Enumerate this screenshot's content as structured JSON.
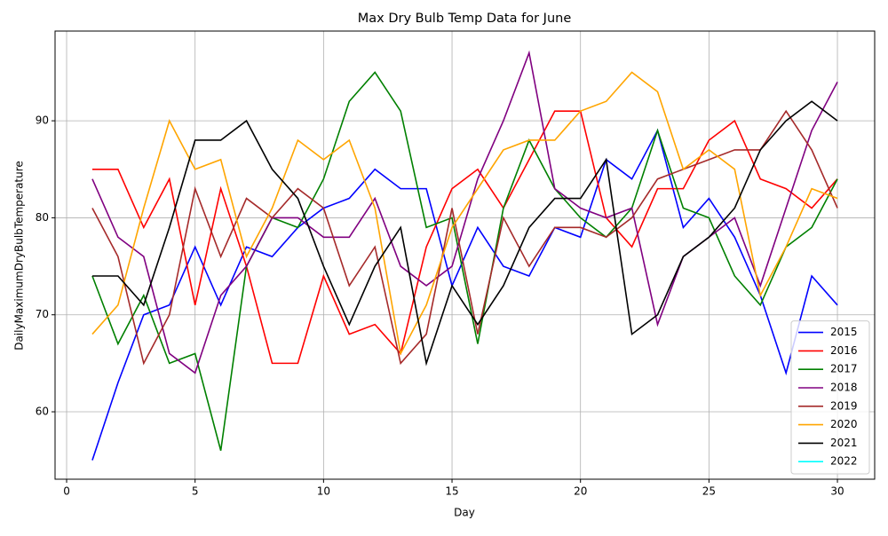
{
  "chart_data": {
    "type": "line",
    "title": "Max Dry Bulb Temp Data for June",
    "x_label": "Day",
    "y_label": "DailyMaximumDryBulbTemperature",
    "x": [
      1,
      2,
      3,
      4,
      5,
      6,
      7,
      8,
      9,
      10,
      11,
      12,
      13,
      14,
      15,
      16,
      17,
      18,
      19,
      20,
      21,
      22,
      23,
      24,
      25,
      26,
      27,
      28,
      29,
      30
    ],
    "series": [
      {
        "name": "2015",
        "color": "#0000ff",
        "values": [
          55,
          63,
          70,
          71,
          77,
          71,
          77,
          76,
          79,
          81,
          82,
          85,
          83,
          83,
          73,
          79,
          75,
          74,
          79,
          78,
          86,
          84,
          89,
          79,
          82,
          78,
          72,
          64,
          74,
          71
        ]
      },
      {
        "name": "2016",
        "color": "#ff0000",
        "values": [
          85,
          85,
          79,
          84,
          71,
          83,
          75,
          65,
          65,
          74,
          68,
          69,
          66,
          77,
          83,
          85,
          81,
          86,
          91,
          91,
          80,
          77,
          83,
          83,
          88,
          90,
          84,
          83,
          81,
          84
        ]
      },
      {
        "name": "2017",
        "color": "#008000",
        "values": [
          74,
          67,
          72,
          65,
          66,
          56,
          75,
          80,
          79,
          84,
          92,
          95,
          91,
          79,
          80,
          67,
          81,
          88,
          83,
          80,
          78,
          81,
          89,
          81,
          80,
          74,
          71,
          77,
          79,
          84
        ]
      },
      {
        "name": "2018",
        "color": "#800080",
        "values": [
          84,
          78,
          76,
          66,
          64,
          72,
          75,
          80,
          80,
          78,
          78,
          82,
          75,
          73,
          75,
          84,
          90,
          97,
          83,
          81,
          80,
          81,
          69,
          76,
          78,
          80,
          73,
          81,
          89,
          94
        ]
      },
      {
        "name": "2019",
        "color": "#a52a2a",
        "values": [
          81,
          76,
          65,
          70,
          83,
          76,
          82,
          80,
          83,
          81,
          73,
          77,
          65,
          68,
          81,
          68,
          80,
          75,
          79,
          79,
          78,
          80,
          84,
          85,
          86,
          87,
          87,
          91,
          87,
          81
        ]
      },
      {
        "name": "2020",
        "color": "#ffa500",
        "values": [
          68,
          71,
          81,
          90,
          85,
          86,
          76,
          81,
          88,
          86,
          88,
          81,
          66,
          71,
          79,
          83,
          87,
          88,
          88,
          91,
          92,
          95,
          93,
          85,
          87,
          85,
          72,
          77,
          83,
          82
        ]
      },
      {
        "name": "2021",
        "color": "#000000",
        "values": [
          74,
          74,
          71,
          79,
          88,
          88,
          90,
          85,
          82,
          75,
          69,
          75,
          79,
          65,
          73,
          69,
          73,
          79,
          82,
          82,
          86,
          68,
          70,
          76,
          78,
          81,
          87,
          90,
          92,
          90
        ]
      },
      {
        "name": "2022",
        "color": "#00ffff",
        "values": [
          null,
          null,
          null,
          null,
          null,
          null,
          null,
          null,
          null,
          null,
          null,
          null,
          null,
          null,
          null,
          null,
          null,
          null,
          null,
          null,
          null,
          null,
          null,
          null,
          null,
          null,
          null,
          null,
          null,
          null
        ]
      }
    ],
    "xlim": [
      -0.45,
      31.45
    ],
    "xticks": [
      0,
      5,
      10,
      15,
      20,
      25,
      30
    ],
    "ylim": [
      53.05,
      99.25
    ],
    "yticks": [
      60,
      70,
      80,
      90
    ],
    "grid": true,
    "legend": "lower right"
  }
}
